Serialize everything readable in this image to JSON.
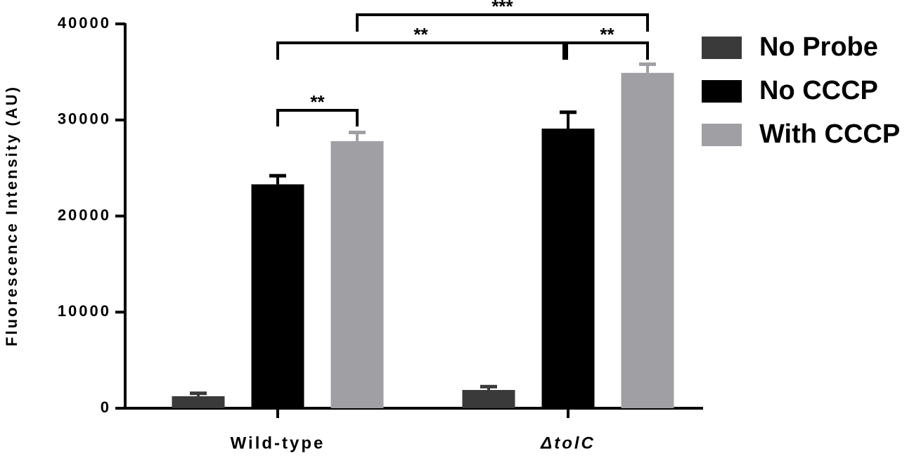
{
  "chart_data": {
    "type": "bar",
    "ylabel": "Fluorescence Intensity (AU)",
    "categories": [
      "Wild-type",
      "ΔtolC"
    ],
    "series": [
      {
        "name": "No Probe",
        "color": "#3a3a3a",
        "values": [
          1250,
          1900
        ],
        "errors": [
          300,
          350
        ]
      },
      {
        "name": "No CCCP",
        "color": "#000000",
        "values": [
          23300,
          29100
        ],
        "errors": [
          900,
          1700
        ]
      },
      {
        "name": "With CCCP",
        "color": "#a0a0a4",
        "values": [
          27800,
          34900
        ],
        "errors": [
          900,
          900
        ]
      }
    ],
    "ylim": [
      0,
      40000
    ],
    "yticks": [
      0,
      10000,
      20000,
      30000,
      40000
    ],
    "annotations": [
      {
        "text": "**"
      },
      {
        "text": "**"
      },
      {
        "text": "**"
      },
      {
        "text": "***"
      }
    ]
  }
}
